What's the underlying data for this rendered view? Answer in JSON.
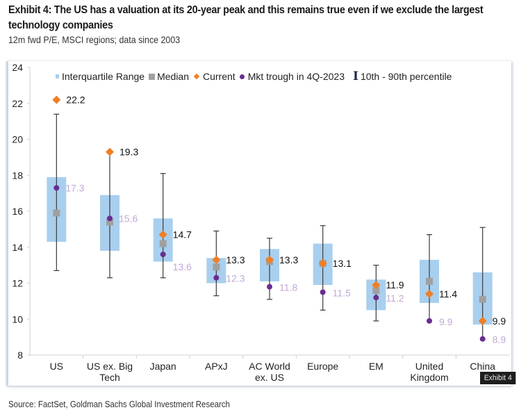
{
  "header": {
    "title": "Exhibit 4: The US has a valuation at its 20-year peak and this remains true even if we exclude the largest technology companies",
    "subtitle": "12m fwd P/E, MSCI regions; data since 2003"
  },
  "footer": {
    "source": "Source: FactSet, Goldman Sachs Global Investment Research",
    "badge": "Exhibit 4"
  },
  "legend": {
    "iqr": "Interquartile Range",
    "median": "Median",
    "current": "Current",
    "trough": "Mkt trough in 4Q-2023",
    "percentile": "10th - 90th percentile"
  },
  "colors": {
    "iqr": "#a9cfee",
    "median": "#a0a0a0",
    "current": "#f07f26",
    "trough": "#6a2c91",
    "trough_label": "#c2a9d6",
    "whisker": "#3a3a3a"
  },
  "chart_data": {
    "type": "boxplot",
    "title": "12m fwd P/E, MSCI regions; data since 2003",
    "ylim": [
      8,
      24
    ],
    "yticks": [
      8,
      10,
      12,
      14,
      16,
      18,
      20,
      22,
      24
    ],
    "grid": false,
    "legend_position": "top",
    "categories": [
      "US",
      "US ex. Big Tech",
      "Japan",
      "APxJ",
      "AC World ex. US",
      "Europe",
      "EM",
      "United Kingdom",
      "China"
    ],
    "category_labels": [
      [
        "US"
      ],
      [
        "US ex. Big",
        "Tech"
      ],
      [
        "Japan"
      ],
      [
        "APxJ"
      ],
      [
        "AC World",
        "ex. US"
      ],
      [
        "Europe"
      ],
      [
        "EM"
      ],
      [
        "United",
        "Kingdom"
      ],
      [
        "China"
      ]
    ],
    "series": [
      {
        "name": "p10",
        "values": [
          12.7,
          12.3,
          12.3,
          11.3,
          11.1,
          10.5,
          9.9,
          9.9,
          8.9
        ]
      },
      {
        "name": "p90",
        "values": [
          21.4,
          19.3,
          18.1,
          14.9,
          14.5,
          15.2,
          13.0,
          14.7,
          15.1
        ]
      },
      {
        "name": "q1",
        "values": [
          14.3,
          13.8,
          13.2,
          12.0,
          12.1,
          11.9,
          10.5,
          10.9,
          9.7
        ]
      },
      {
        "name": "q3",
        "values": [
          17.9,
          16.9,
          15.6,
          13.4,
          13.9,
          14.2,
          12.2,
          13.3,
          12.6
        ]
      },
      {
        "name": "Median",
        "values": [
          15.9,
          15.4,
          14.2,
          12.9,
          13.2,
          13.1,
          11.6,
          12.1,
          11.1
        ]
      },
      {
        "name": "Current",
        "values": [
          22.2,
          19.3,
          14.7,
          13.3,
          13.3,
          13.1,
          11.9,
          11.4,
          9.9
        ]
      },
      {
        "name": "Mkt trough in 4Q-2023",
        "values": [
          17.3,
          15.6,
          13.6,
          12.3,
          11.8,
          11.5,
          11.2,
          9.9,
          8.9
        ]
      }
    ],
    "current_labels": [
      "22.2",
      "19.3",
      "14.7",
      "13.3",
      "13.3",
      "13.1",
      "11.9",
      "11.4",
      "9.9"
    ],
    "trough_labels": [
      "17.3",
      "15.6",
      "13.6",
      "12.3",
      "11.8",
      "11.5",
      "11.2",
      "9.9",
      "8.9"
    ]
  }
}
